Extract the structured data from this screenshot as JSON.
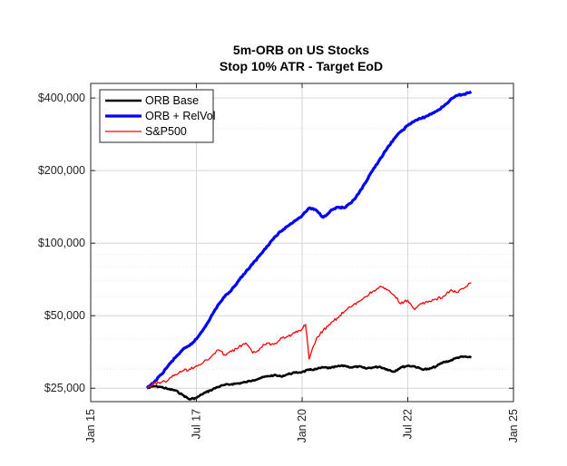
{
  "chart_data": {
    "type": "line",
    "title": "5m-ORB on US Stocks",
    "subtitle": "Stop 10% ATR - Target EoD",
    "xlabel": "",
    "ylabel": "",
    "y_scale": "log",
    "xlim": [
      "2015-01",
      "2025-01"
    ],
    "ylim": [
      22000,
      460000
    ],
    "x_ticks": [
      "Jan 15",
      "Jul 17",
      "Jan 20",
      "Jul 22",
      "Jan 25"
    ],
    "y_ticks": [
      "$25,000",
      "$50,000",
      "$100,000",
      "$200,000",
      "$400,000"
    ],
    "y_tick_values": [
      25000,
      50000,
      100000,
      200000,
      400000
    ],
    "grid": true,
    "legend_position": "top-left",
    "series": [
      {
        "name": "ORB Base",
        "color": "#000000",
        "points": [
          [
            "2016-05",
            25000
          ],
          [
            "2016-07",
            25500
          ],
          [
            "2016-09",
            25300
          ],
          [
            "2016-11",
            24800
          ],
          [
            "2017-01",
            24500
          ],
          [
            "2017-03",
            23500
          ],
          [
            "2017-05",
            22500
          ],
          [
            "2017-07",
            22800
          ],
          [
            "2017-09",
            23800
          ],
          [
            "2017-11",
            24500
          ],
          [
            "2018-01",
            25300
          ],
          [
            "2018-03",
            25800
          ],
          [
            "2018-05",
            26000
          ],
          [
            "2018-07",
            26200
          ],
          [
            "2018-09",
            26500
          ],
          [
            "2018-11",
            27000
          ],
          [
            "2019-01",
            27500
          ],
          [
            "2019-03",
            28000
          ],
          [
            "2019-05",
            28300
          ],
          [
            "2019-07",
            28000
          ],
          [
            "2019-09",
            28600
          ],
          [
            "2019-11",
            29000
          ],
          [
            "2020-01",
            29200
          ],
          [
            "2020-03",
            29800
          ],
          [
            "2020-05",
            30000
          ],
          [
            "2020-07",
            30500
          ],
          [
            "2020-09",
            30300
          ],
          [
            "2020-11",
            30800
          ],
          [
            "2021-01",
            31000
          ],
          [
            "2021-03",
            30500
          ],
          [
            "2021-05",
            30800
          ],
          [
            "2021-07",
            30200
          ],
          [
            "2021-09",
            30500
          ],
          [
            "2021-11",
            30700
          ],
          [
            "2022-01",
            30000
          ],
          [
            "2022-03",
            29300
          ],
          [
            "2022-05",
            30500
          ],
          [
            "2022-07",
            31000
          ],
          [
            "2022-09",
            30800
          ],
          [
            "2022-11",
            30000
          ],
          [
            "2023-01",
            30000
          ],
          [
            "2023-03",
            30800
          ],
          [
            "2023-05",
            32000
          ],
          [
            "2023-07",
            32500
          ],
          [
            "2023-09",
            33500
          ],
          [
            "2023-11",
            33800
          ],
          [
            "2024-01",
            33500
          ]
        ]
      },
      {
        "name": "ORB + RelVol",
        "color": "#0000ff",
        "points": [
          [
            "2016-05",
            25000
          ],
          [
            "2016-07",
            26500
          ],
          [
            "2016-09",
            28500
          ],
          [
            "2016-11",
            31000
          ],
          [
            "2017-01",
            33500
          ],
          [
            "2017-03",
            36000
          ],
          [
            "2017-05",
            37500
          ],
          [
            "2017-07",
            40000
          ],
          [
            "2017-09",
            44000
          ],
          [
            "2017-11",
            49000
          ],
          [
            "2018-01",
            55000
          ],
          [
            "2018-03",
            60000
          ],
          [
            "2018-05",
            64000
          ],
          [
            "2018-07",
            70000
          ],
          [
            "2018-09",
            76000
          ],
          [
            "2018-11",
            82000
          ],
          [
            "2019-01",
            89000
          ],
          [
            "2019-03",
            97000
          ],
          [
            "2019-05",
            105000
          ],
          [
            "2019-07",
            112000
          ],
          [
            "2019-09",
            118000
          ],
          [
            "2019-11",
            124000
          ],
          [
            "2020-01",
            130000
          ],
          [
            "2020-03",
            140000
          ],
          [
            "2020-05",
            137000
          ],
          [
            "2020-07",
            128000
          ],
          [
            "2020-09",
            136000
          ],
          [
            "2020-11",
            141000
          ],
          [
            "2021-01",
            140000
          ],
          [
            "2021-03",
            147000
          ],
          [
            "2021-05",
            160000
          ],
          [
            "2021-07",
            178000
          ],
          [
            "2021-09",
            200000
          ],
          [
            "2021-11",
            222000
          ],
          [
            "2022-01",
            245000
          ],
          [
            "2022-03",
            270000
          ],
          [
            "2022-05",
            290000
          ],
          [
            "2022-07",
            308000
          ],
          [
            "2022-09",
            322000
          ],
          [
            "2022-11",
            330000
          ],
          [
            "2023-01",
            340000
          ],
          [
            "2023-03",
            352000
          ],
          [
            "2023-05",
            368000
          ],
          [
            "2023-07",
            392000
          ],
          [
            "2023-09",
            410000
          ],
          [
            "2023-11",
            415000
          ],
          [
            "2024-01",
            425000
          ]
        ]
      },
      {
        "name": "S&P500",
        "color": "#ff0000",
        "points": [
          [
            "2016-05",
            25000
          ],
          [
            "2016-07",
            26200
          ],
          [
            "2016-09",
            26500
          ],
          [
            "2016-11",
            27000
          ],
          [
            "2017-01",
            28500
          ],
          [
            "2017-03",
            29500
          ],
          [
            "2017-05",
            30000
          ],
          [
            "2017-07",
            31000
          ],
          [
            "2017-09",
            32000
          ],
          [
            "2017-11",
            33500
          ],
          [
            "2018-01",
            36000
          ],
          [
            "2018-03",
            34500
          ],
          [
            "2018-05",
            35500
          ],
          [
            "2018-07",
            37000
          ],
          [
            "2018-09",
            38500
          ],
          [
            "2018-11",
            35000
          ],
          [
            "2019-01",
            36500
          ],
          [
            "2019-03",
            38500
          ],
          [
            "2019-05",
            38000
          ],
          [
            "2019-07",
            40500
          ],
          [
            "2019-09",
            41000
          ],
          [
            "2019-11",
            42500
          ],
          [
            "2020-01",
            44000
          ],
          [
            "2020-02",
            46000
          ],
          [
            "2020-03",
            33000
          ],
          [
            "2020-05",
            40000
          ],
          [
            "2020-07",
            43500
          ],
          [
            "2020-09",
            46000
          ],
          [
            "2020-11",
            49000
          ],
          [
            "2021-01",
            52000
          ],
          [
            "2021-03",
            54500
          ],
          [
            "2021-05",
            57000
          ],
          [
            "2021-07",
            60000
          ],
          [
            "2021-09",
            63000
          ],
          [
            "2021-11",
            66000
          ],
          [
            "2022-01",
            64000
          ],
          [
            "2022-03",
            61000
          ],
          [
            "2022-05",
            56000
          ],
          [
            "2022-07",
            58000
          ],
          [
            "2022-09",
            53000
          ],
          [
            "2022-11",
            56000
          ],
          [
            "2023-01",
            57500
          ],
          [
            "2023-03",
            58500
          ],
          [
            "2023-05",
            60000
          ],
          [
            "2023-07",
            63500
          ],
          [
            "2023-09",
            62500
          ],
          [
            "2023-11",
            65000
          ],
          [
            "2024-01",
            68500
          ]
        ]
      }
    ]
  }
}
